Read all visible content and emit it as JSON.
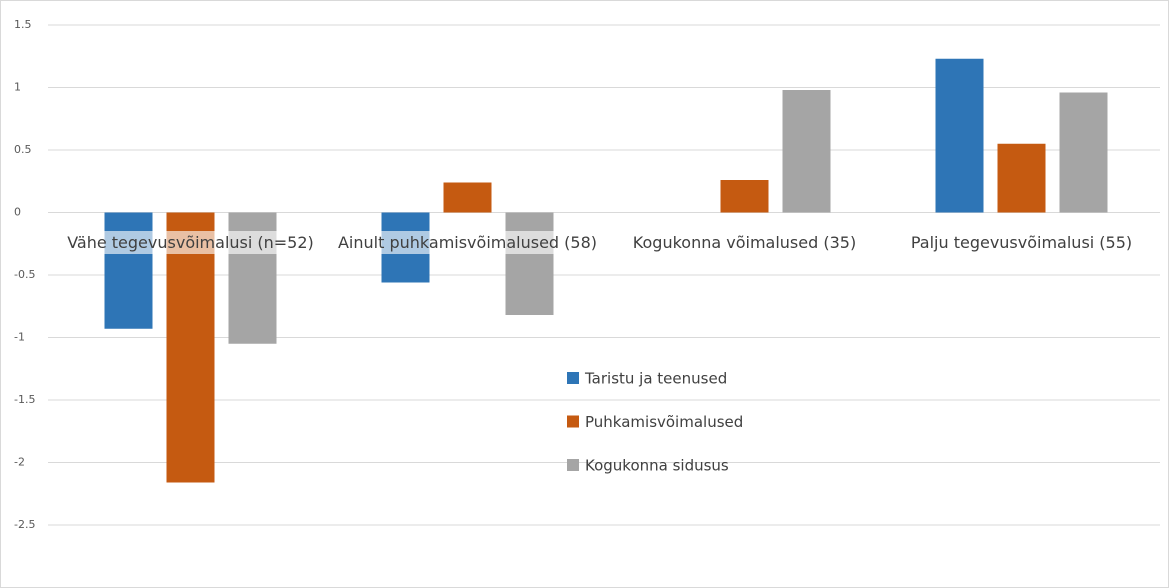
{
  "chart_data": {
    "type": "bar",
    "categories": [
      "Vähe tegevusvõimalusi (n=52)",
      "Ainult puhkamisvõimalused (58)",
      "Kogukonna võimalused (35)",
      "Palju tegevusvõimalusi (55)"
    ],
    "series": [
      {
        "name": "Taristu ja teenused",
        "color": "#2e75b6",
        "values": [
          -0.93,
          -0.56,
          0,
          1.23
        ]
      },
      {
        "name": "Puhkamisvõimalused",
        "color": "#c55a11",
        "values": [
          -2.16,
          0.24,
          0.26,
          0.55
        ]
      },
      {
        "name": "Kogukonna sidusus",
        "color": "#a5a5a5",
        "values": [
          -1.05,
          -0.82,
          0.98,
          0.96
        ]
      }
    ],
    "ylim": [
      -2.5,
      1.5
    ],
    "yticks": [
      1.5,
      1,
      0.5,
      0,
      -0.5,
      -1,
      -1.5,
      -2,
      -2.5
    ],
    "grid": true,
    "legend": "center"
  }
}
